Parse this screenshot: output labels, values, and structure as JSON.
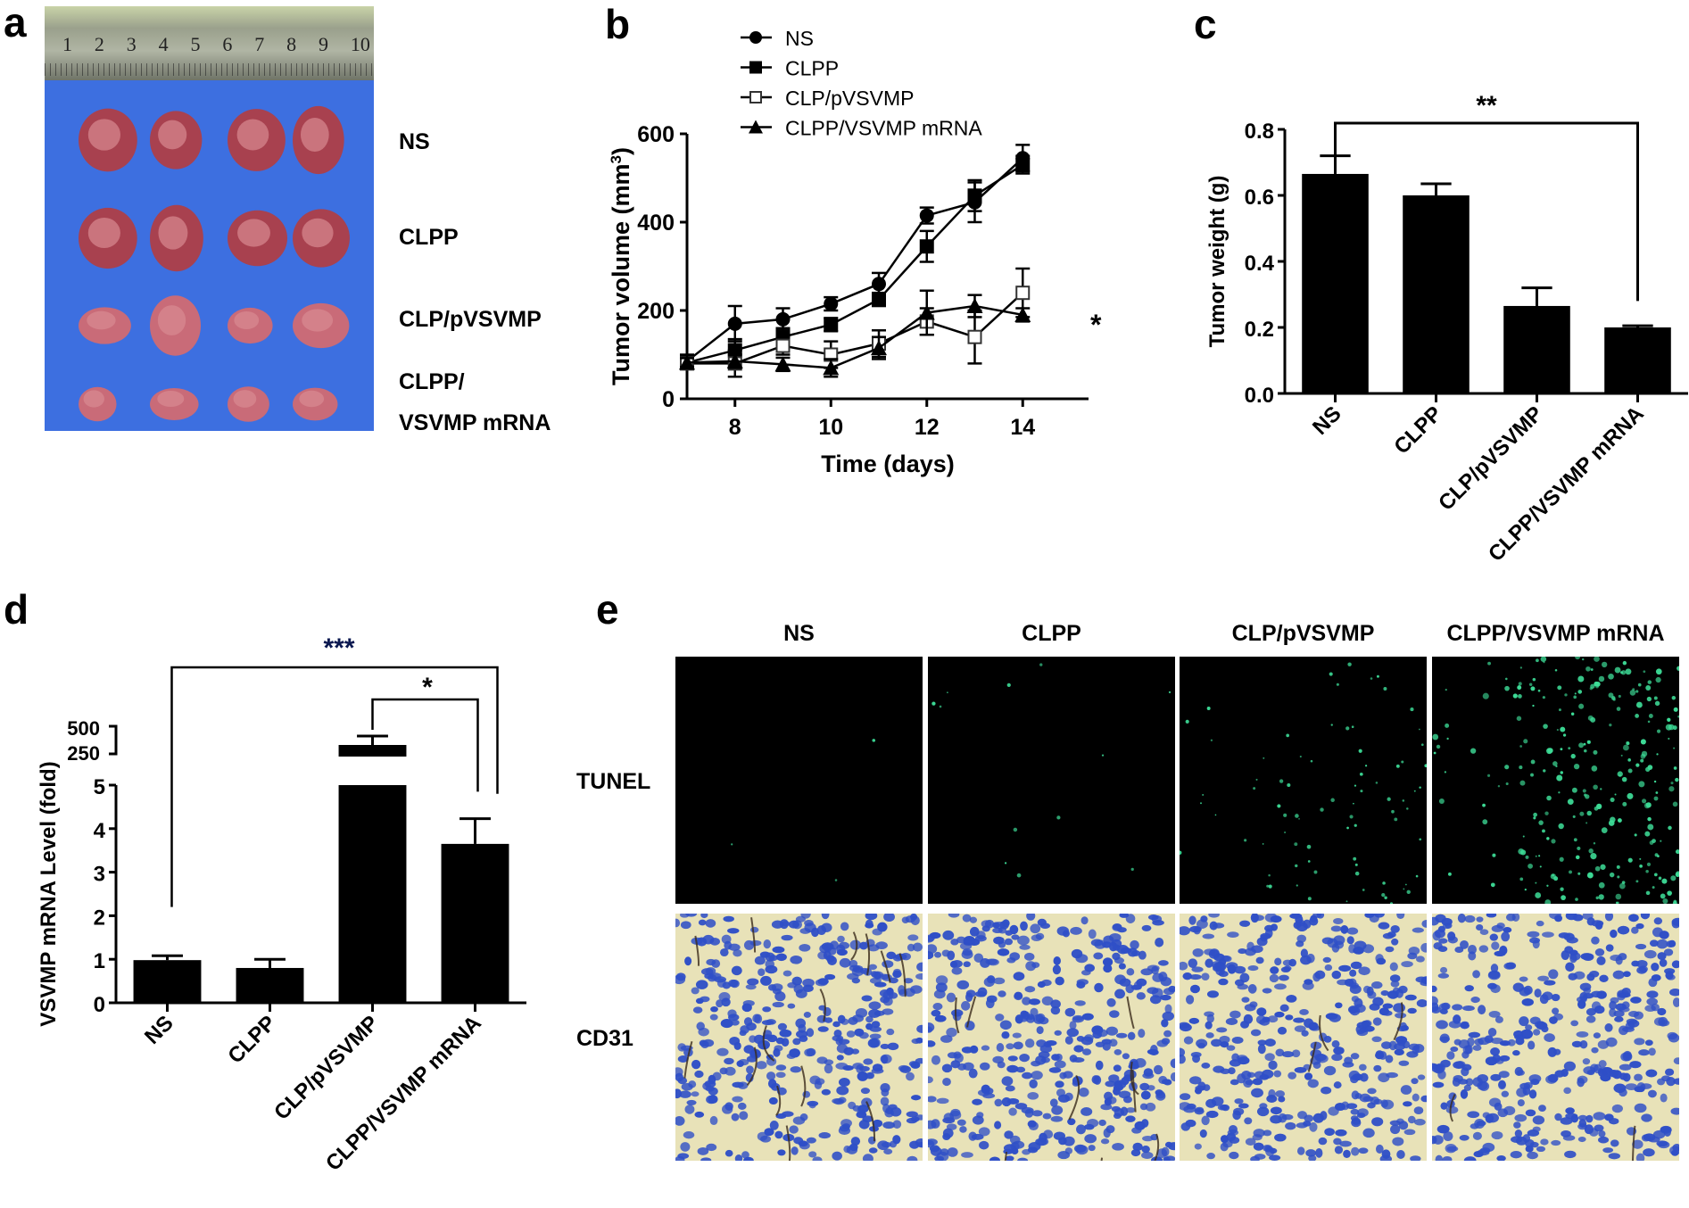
{
  "panels": {
    "a": {
      "label": "a",
      "ruler_numbers": [
        "1",
        "2",
        "3",
        "4",
        "5",
        "6",
        "7",
        "8",
        "9",
        "10"
      ],
      "row_labels": [
        "NS",
        "CLPP",
        "CLP/pVSVMP",
        "CLPP/",
        "VSVMP mRNA"
      ],
      "colors": {
        "background": "#3d6fe0",
        "tumor": "#a8414f",
        "tumor_light": "#d98a92"
      }
    },
    "b": {
      "label": "b"
    },
    "c": {
      "label": "c"
    },
    "d": {
      "label": "d"
    },
    "e": {
      "label": "e",
      "column_labels": [
        "NS",
        "CLPP",
        "CLP/pVSVMP",
        "CLPP/VSVMP mRNA"
      ],
      "row_labels": [
        "TUNEL",
        "CD31"
      ],
      "tunel_density": [
        3,
        12,
        80,
        260
      ],
      "colors": {
        "tunel_bg": "#000000",
        "tunel_dot": "#3ddc97",
        "cd31_nuclei": "#2f4fc7",
        "cd31_stroma": "#e8e2b8"
      }
    }
  },
  "chart_data": [
    {
      "panel": "b",
      "type": "line",
      "title": "",
      "xlabel": "Time (days)",
      "ylabel": "Tumor volume (mm3)",
      "ylabel_main": "Tumor volume (mm",
      "ylabel_sup": "3",
      "ylabel_end": ")",
      "x": [
        7,
        8,
        9,
        10,
        11,
        12,
        13,
        14
      ],
      "xticks": [
        "8",
        "10",
        "12",
        "14"
      ],
      "yticks": [
        "0",
        "200",
        "400",
        "600"
      ],
      "ylim": [
        0,
        600
      ],
      "xlim": [
        7,
        15
      ],
      "legend": [
        "NS",
        "CLPP",
        "CLP/pVSVMP",
        "CLPP/VSVMP mRNA"
      ],
      "legend_position": "top",
      "annotation": "*",
      "series": [
        {
          "name": "NS",
          "marker": "circle",
          "values": [
            85,
            170,
            180,
            215,
            260,
            415,
            445,
            545
          ],
          "err": [
            15,
            40,
            25,
            15,
            25,
            18,
            45,
            30
          ]
        },
        {
          "name": "CLPP",
          "marker": "square",
          "values": [
            82,
            110,
            140,
            168,
            225,
            345,
            460,
            530
          ],
          "err": [
            12,
            25,
            20,
            15,
            15,
            35,
            35,
            20
          ]
        },
        {
          "name": "CLP/pVSVMP",
          "marker": "open-square",
          "values": [
            80,
            80,
            120,
            100,
            125,
            175,
            140,
            240
          ],
          "err": [
            10,
            30,
            20,
            30,
            30,
            30,
            60,
            55
          ]
        },
        {
          "name": "CLPP/VSVMP mRNA",
          "marker": "triangle",
          "values": [
            82,
            85,
            78,
            70,
            115,
            195,
            210,
            190
          ],
          "err": [
            10,
            15,
            15,
            20,
            25,
            50,
            25,
            15
          ]
        }
      ]
    },
    {
      "panel": "c",
      "type": "bar",
      "title": "",
      "xlabel": "",
      "ylabel": "Tumor weight (g)",
      "categories": [
        "NS",
        "CLPP",
        "CLP/pVSVMP",
        "CLPP/VSVMP mRNA"
      ],
      "values": [
        0.665,
        0.6,
        0.265,
        0.2
      ],
      "err": [
        0.055,
        0.035,
        0.055,
        0.005
      ],
      "yticks": [
        "0.0",
        "0.2",
        "0.4",
        "0.6",
        "0.8"
      ],
      "ylim": [
        0,
        0.8
      ],
      "annotation": "**",
      "bracket": [
        "NS",
        "CLPP/VSVMP mRNA"
      ]
    },
    {
      "panel": "d",
      "type": "bar",
      "title": "",
      "xlabel": "",
      "ylabel": "VSVMP mRNA Level (fold)",
      "categories": [
        "NS",
        "CLPP",
        "CLP/pVSVMP",
        "CLPP/VSVMP mRNA"
      ],
      "values": [
        0.98,
        0.8,
        400,
        3.65
      ],
      "err": [
        0.1,
        0.2,
        40,
        0.58
      ],
      "yticks": [
        "0",
        "1",
        "2",
        "3",
        "4",
        "5"
      ],
      "yticks_broken": [
        "250",
        "500"
      ],
      "ylim": [
        0,
        5
      ],
      "broken_axis": true,
      "annotations": [
        {
          "text": "***",
          "bracket": [
            "NS",
            "CLPP/VSVMP mRNA"
          ]
        },
        {
          "text": "*",
          "bracket": [
            "CLP/pVSVMP",
            "CLPP/VSVMP mRNA"
          ]
        }
      ]
    }
  ]
}
